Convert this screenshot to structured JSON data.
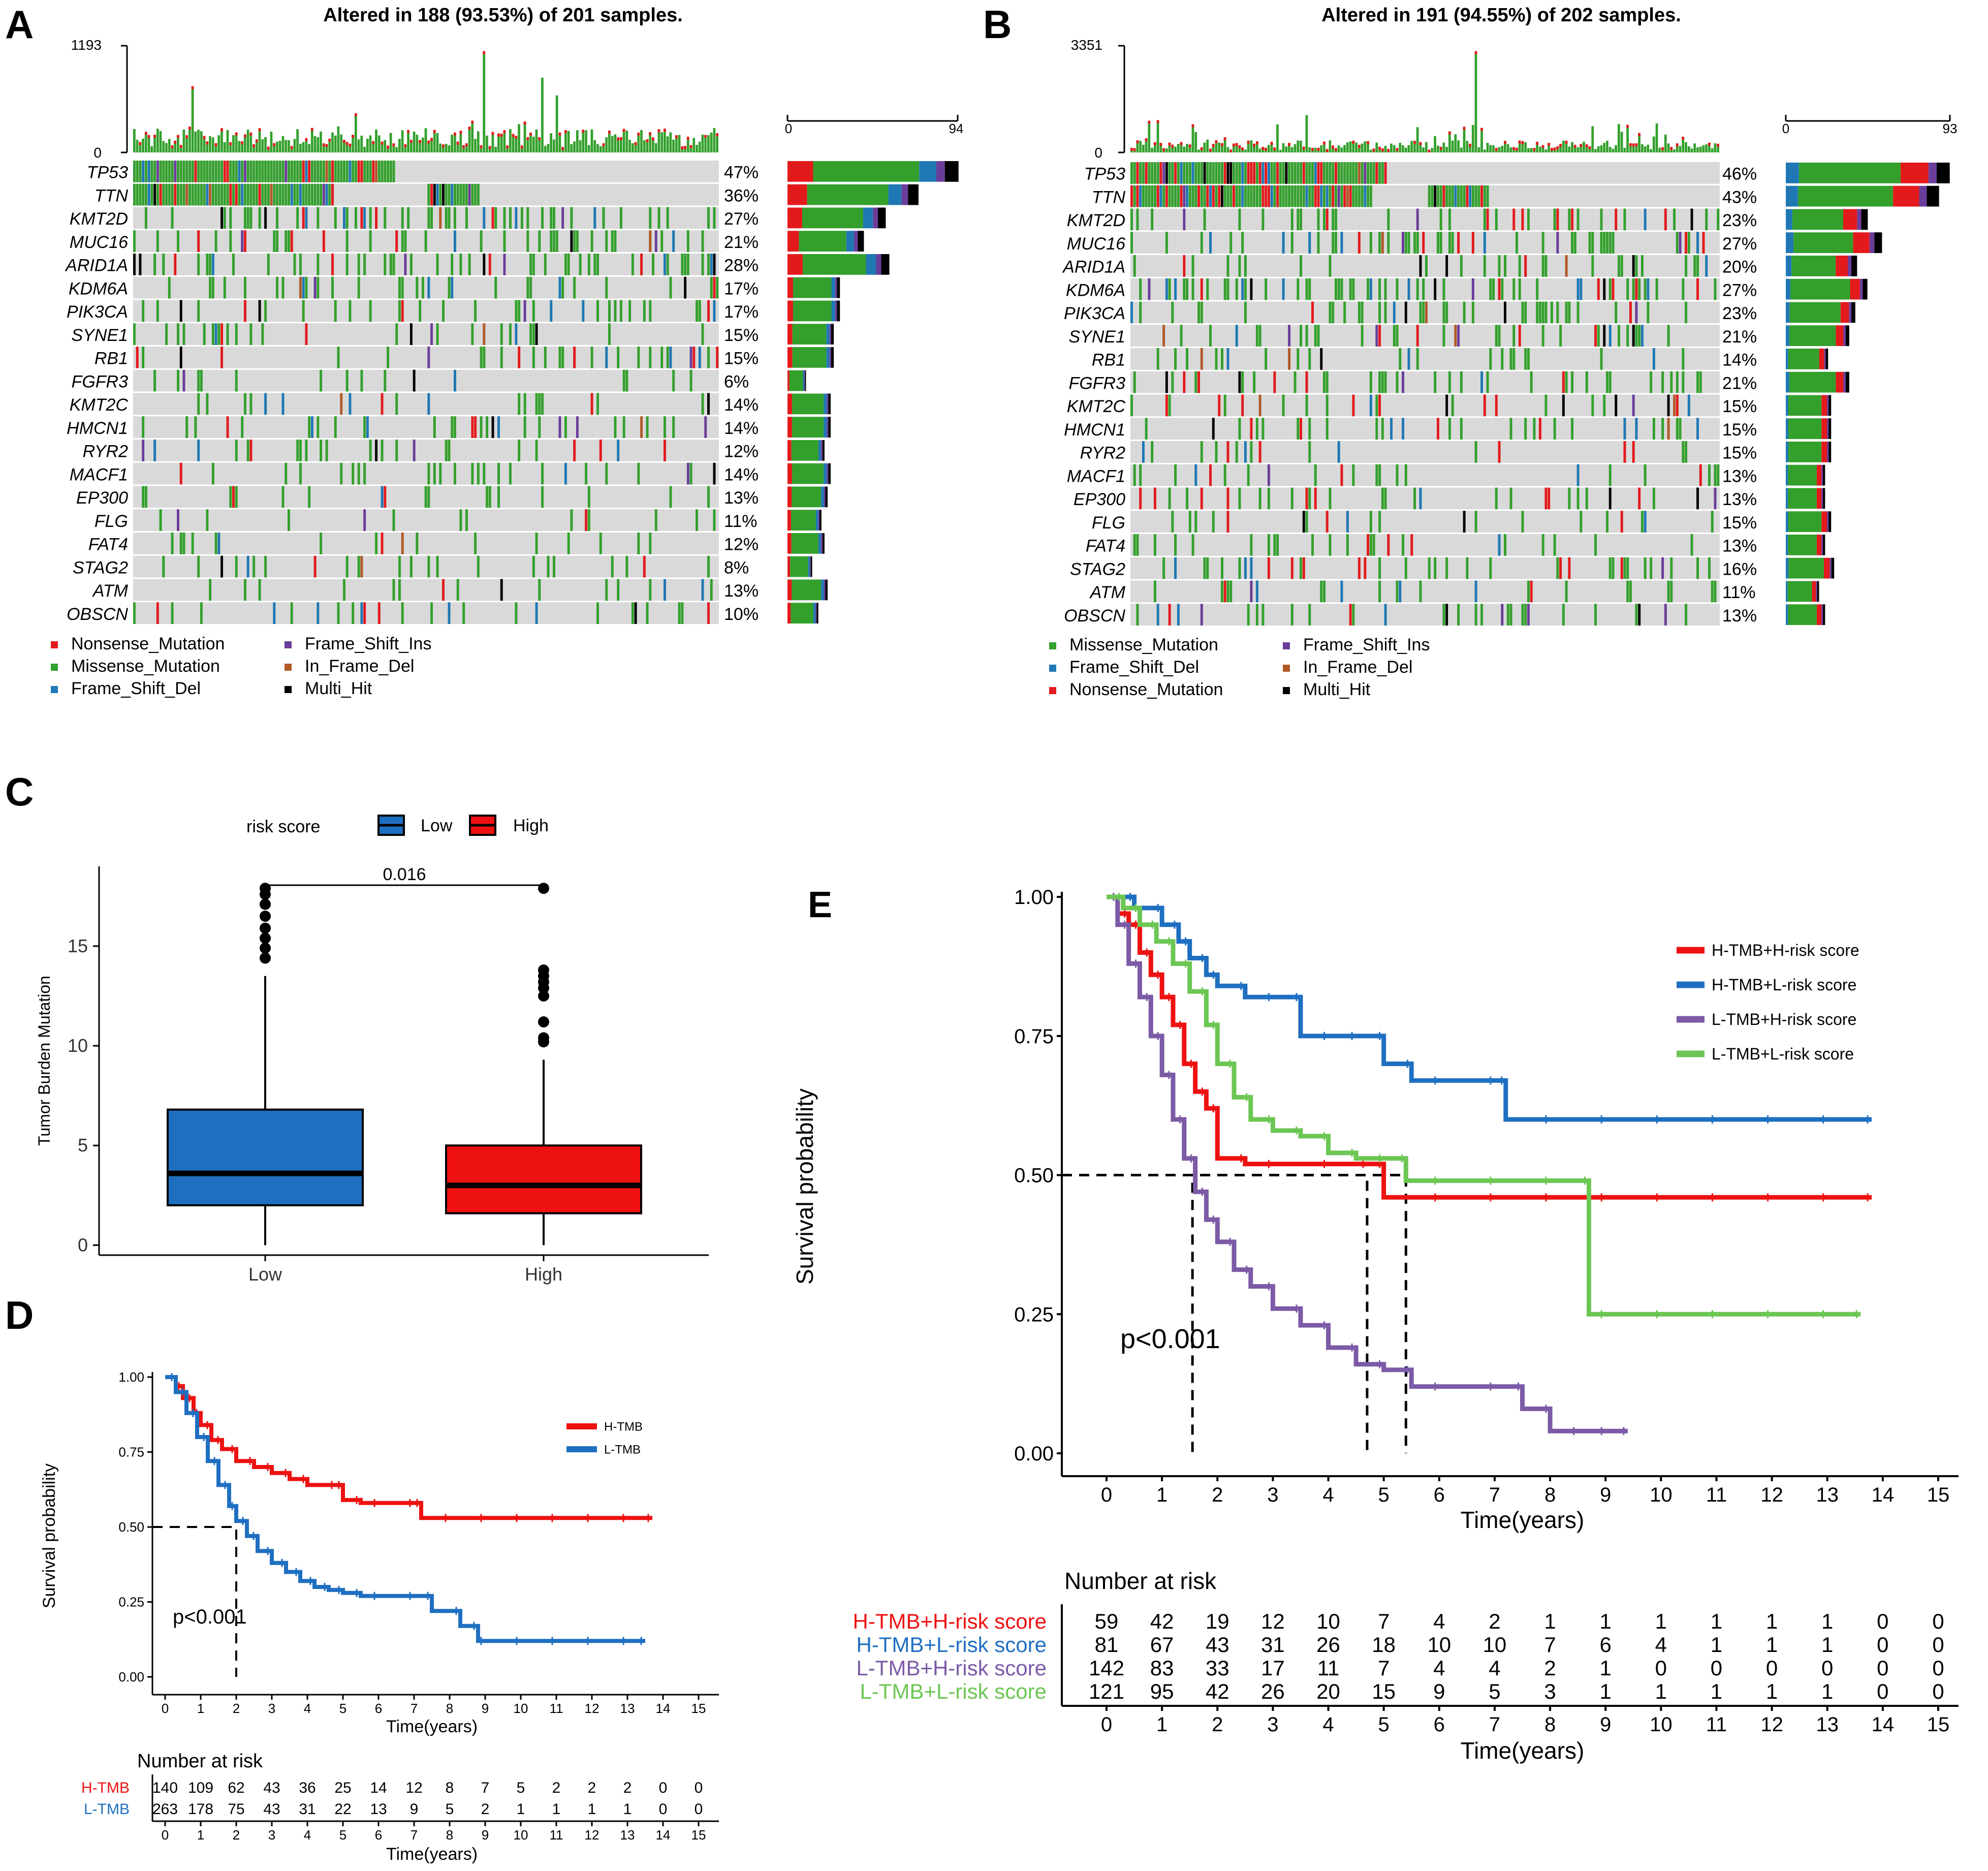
{
  "colors": {
    "missense": "#33a02c",
    "nonsense": "#e31a1c",
    "frameshift_del": "#1f78b4",
    "frameshift_ins": "#6a3d9a",
    "inframe_del": "#b15928",
    "multi_hit": "#000000",
    "bg_cell": "#d9d9d9",
    "low": "#1f6fc1",
    "high": "#ee1111",
    "purple": "#7b5aa6",
    "green_l": "#6cc653"
  },
  "panels": {
    "A": {
      "letter": "A",
      "title": "Altered in 188 (93.53%) of 201 samples.",
      "tmb_max": "1193",
      "tmb_zero": "0",
      "bar_zero": "0",
      "bar_max": "94"
    },
    "B": {
      "letter": "B",
      "title": "Altered in 191 (94.55%) of 202 samples.",
      "tmb_max": "3351",
      "tmb_zero": "0",
      "bar_zero": "0",
      "bar_max": "93"
    },
    "C": {
      "letter": "C"
    },
    "D": {
      "letter": "D"
    },
    "E": {
      "letter": "E"
    }
  },
  "chart_data": [
    {
      "id": "A",
      "type": "oncoplot",
      "title": "Altered in 188 (93.53%) of 201 samples.",
      "samples": 201,
      "tmb_axis_max": 1193,
      "bar_axis_max": 94,
      "genes": [
        "TP53",
        "TTN",
        "KMT2D",
        "MUC16",
        "ARID1A",
        "KDM6A",
        "PIK3CA",
        "SYNE1",
        "RB1",
        "FGFR3",
        "KMT2C",
        "HMCN1",
        "RYR2",
        "MACF1",
        "EP300",
        "FLG",
        "FAT4",
        "STAG2",
        "ATM",
        "OBSCN"
      ],
      "percent_labels": [
        "47%",
        "36%",
        "27%",
        "21%",
        "28%",
        "17%",
        "17%",
        "15%",
        "15%",
        "6%",
        "14%",
        "14%",
        "12%",
        "14%",
        "13%",
        "11%",
        "12%",
        "8%",
        "13%",
        "10%"
      ],
      "percent": [
        47,
        36,
        27,
        21,
        28,
        17,
        17,
        15,
        15,
        6,
        14,
        14,
        12,
        14,
        13,
        11,
        12,
        8,
        13,
        10
      ],
      "legend": [
        "Nonsense_Mutation",
        "Missense_Mutation",
        "Frame_Shift_Del",
        "Frame_Shift_Ins",
        "In_Frame_Del",
        "Multi_Hit"
      ]
    },
    {
      "id": "B",
      "type": "oncoplot",
      "title": "Altered in 191 (94.55%) of 202 samples.",
      "samples": 202,
      "tmb_axis_max": 3351,
      "bar_axis_max": 93,
      "genes": [
        "TP53",
        "TTN",
        "KMT2D",
        "MUC16",
        "ARID1A",
        "KDM6A",
        "PIK3CA",
        "SYNE1",
        "RB1",
        "FGFR3",
        "KMT2C",
        "HMCN1",
        "RYR2",
        "MACF1",
        "EP300",
        "FLG",
        "FAT4",
        "STAG2",
        "ATM",
        "OBSCN"
      ],
      "percent_labels": [
        "46%",
        "43%",
        "23%",
        "27%",
        "20%",
        "27%",
        "23%",
        "21%",
        "14%",
        "21%",
        "15%",
        "15%",
        "15%",
        "13%",
        "13%",
        "15%",
        "13%",
        "16%",
        "11%",
        "13%"
      ],
      "percent": [
        46,
        43,
        23,
        27,
        20,
        27,
        23,
        21,
        14,
        21,
        15,
        15,
        15,
        13,
        13,
        15,
        13,
        16,
        11,
        13
      ],
      "legend": [
        "Missense_Mutation",
        "Frame_Shift_Del",
        "Nonsense_Mutation",
        "Frame_Shift_Ins",
        "In_Frame_Del",
        "Multi_Hit"
      ]
    },
    {
      "id": "C",
      "type": "boxplot",
      "legend_title": "risk score",
      "legend": [
        "Low",
        "High"
      ],
      "ylabel": "Tumor Burden Mutation",
      "categories": [
        "Low",
        "High"
      ],
      "ylim": [
        -0.5,
        19
      ],
      "yticks": [
        0,
        5,
        10,
        15
      ],
      "boxes": [
        {
          "name": "Low",
          "q1": 2.0,
          "median": 3.6,
          "q3": 6.8,
          "whisker_low": 0,
          "whisker_high": 13.5,
          "outliers": [
            14.4,
            14.9,
            15.4,
            15.9,
            16.5,
            17.1,
            17.6,
            17.9
          ]
        },
        {
          "name": "High",
          "q1": 1.6,
          "median": 3.0,
          "q3": 5.0,
          "whisker_low": 0,
          "whisker_high": 9.3,
          "outliers": [
            10.2,
            10.4,
            11.2,
            12.5,
            12.9,
            13.2,
            13.5,
            13.8,
            17.9
          ]
        }
      ],
      "pvalue": "0.016"
    },
    {
      "id": "D",
      "type": "line",
      "ylabel": "Survival probability",
      "xlabel": "Time(years)",
      "xlim": [
        0,
        15
      ],
      "ylim": [
        0,
        1
      ],
      "yticks": [
        "0.00",
        "0.25",
        "0.50",
        "0.75",
        "1.00"
      ],
      "xticks": [
        "0",
        "1",
        "2",
        "3",
        "4",
        "5",
        "6",
        "7",
        "8",
        "9",
        "10",
        "11",
        "12",
        "13",
        "14",
        "15"
      ],
      "pvalue_text": "p<0.001",
      "series": [
        {
          "name": "H-TMB",
          "x": [
            0,
            0.3,
            0.5,
            0.8,
            1,
            1.3,
            1.6,
            2,
            2.5,
            3,
            3.5,
            4,
            4.8,
            5,
            5.5,
            6,
            7,
            7.2,
            8,
            9,
            10,
            11,
            12,
            13,
            13.7
          ],
          "y": [
            1,
            0.97,
            0.93,
            0.88,
            0.84,
            0.79,
            0.76,
            0.72,
            0.7,
            0.68,
            0.66,
            0.64,
            0.64,
            0.59,
            0.58,
            0.58,
            0.58,
            0.53,
            0.53,
            0.53,
            0.53,
            0.53,
            0.53,
            0.53,
            0.53
          ]
        },
        {
          "name": "L-TMB",
          "x": [
            0,
            0.3,
            0.6,
            0.9,
            1.2,
            1.5,
            1.8,
            2,
            2.3,
            2.6,
            3,
            3.4,
            3.8,
            4.2,
            4.6,
            5,
            5.5,
            6,
            7,
            7.5,
            8.3,
            8.8,
            9,
            10,
            11,
            12,
            13,
            13.5
          ],
          "y": [
            1,
            0.95,
            0.88,
            0.8,
            0.72,
            0.64,
            0.57,
            0.52,
            0.47,
            0.42,
            0.38,
            0.35,
            0.32,
            0.3,
            0.29,
            0.28,
            0.27,
            0.27,
            0.27,
            0.22,
            0.17,
            0.12,
            0.12,
            0.12,
            0.12,
            0.12,
            0.12,
            0.12
          ]
        }
      ],
      "risk_table_title": "Number at risk",
      "risk_table": [
        {
          "name": "H-TMB",
          "values": [
            140,
            109,
            62,
            43,
            36,
            25,
            14,
            12,
            8,
            7,
            5,
            2,
            2,
            2,
            0,
            0
          ]
        },
        {
          "name": "L-TMB",
          "values": [
            263,
            178,
            75,
            43,
            31,
            22,
            13,
            9,
            5,
            2,
            1,
            1,
            1,
            1,
            0,
            0
          ]
        }
      ]
    },
    {
      "id": "E",
      "type": "line",
      "ylabel": "Survival probability",
      "xlabel": "Time(years)",
      "xlim": [
        0,
        15
      ],
      "ylim": [
        0,
        1
      ],
      "yticks": [
        "0.00",
        "0.25",
        "0.50",
        "0.75",
        "1.00"
      ],
      "xticks": [
        "0",
        "1",
        "2",
        "3",
        "4",
        "5",
        "6",
        "7",
        "8",
        "9",
        "10",
        "11",
        "12",
        "13",
        "14",
        "15"
      ],
      "pvalue_text": "p<0.001",
      "series": [
        {
          "name": "H-TMB+H-risk score",
          "x": [
            0,
            0.2,
            0.4,
            0.6,
            0.8,
            1,
            1.2,
            1.4,
            1.6,
            1.8,
            2,
            2.5,
            3,
            4,
            4.7,
            5,
            6,
            7,
            8,
            9,
            10,
            11,
            12,
            13,
            13.8
          ],
          "y": [
            1,
            0.97,
            0.95,
            0.9,
            0.86,
            0.82,
            0.77,
            0.7,
            0.65,
            0.62,
            0.53,
            0.52,
            0.52,
            0.52,
            0.52,
            0.46,
            0.46,
            0.46,
            0.46,
            0.46,
            0.46,
            0.46,
            0.46,
            0.46,
            0.46
          ]
        },
        {
          "name": "H-TMB+L-risk score",
          "x": [
            0,
            0.5,
            1,
            1.3,
            1.5,
            1.8,
            2,
            2.5,
            3,
            3.5,
            4,
            4.5,
            5,
            5.5,
            6,
            7,
            7.2,
            8,
            9,
            10,
            11,
            12,
            13,
            13.8
          ],
          "y": [
            1,
            0.98,
            0.95,
            0.92,
            0.89,
            0.86,
            0.84,
            0.82,
            0.82,
            0.75,
            0.75,
            0.75,
            0.7,
            0.67,
            0.67,
            0.67,
            0.6,
            0.6,
            0.6,
            0.6,
            0.6,
            0.6,
            0.6,
            0.6
          ]
        },
        {
          "name": "L-TMB+H-risk score",
          "x": [
            0,
            0.2,
            0.4,
            0.6,
            0.8,
            1,
            1.2,
            1.4,
            1.6,
            1.8,
            2,
            2.3,
            2.6,
            3,
            3.5,
            4,
            4.5,
            5,
            5.5,
            6,
            7,
            7.5,
            8,
            8.5,
            9,
            9.4
          ],
          "y": [
            1,
            0.95,
            0.88,
            0.82,
            0.75,
            0.68,
            0.6,
            0.53,
            0.47,
            0.42,
            0.38,
            0.33,
            0.3,
            0.26,
            0.23,
            0.19,
            0.16,
            0.15,
            0.12,
            0.12,
            0.12,
            0.08,
            0.04,
            0.04,
            0.04,
            0.04
          ]
        },
        {
          "name": "L-TMB+L-risk score",
          "x": [
            0,
            0.3,
            0.6,
            0.9,
            1.2,
            1.5,
            1.8,
            2,
            2.3,
            2.6,
            3,
            3.5,
            4,
            4.5,
            5,
            5.4,
            6,
            7,
            8,
            8.7,
            9,
            10,
            11,
            12,
            13,
            13.6
          ],
          "y": [
            1,
            0.98,
            0.95,
            0.92,
            0.88,
            0.83,
            0.77,
            0.7,
            0.64,
            0.6,
            0.58,
            0.57,
            0.54,
            0.53,
            0.53,
            0.49,
            0.49,
            0.49,
            0.49,
            0.25,
            0.25,
            0.25,
            0.25,
            0.25,
            0.25,
            0.25
          ]
        }
      ],
      "risk_table_title": "Number at risk",
      "risk_table": [
        {
          "name": "H-TMB+H-risk score",
          "values": [
            59,
            42,
            19,
            12,
            10,
            7,
            4,
            2,
            1,
            1,
            1,
            1,
            1,
            1,
            0,
            0
          ]
        },
        {
          "name": "H-TMB+L-risk score",
          "values": [
            81,
            67,
            43,
            31,
            26,
            18,
            10,
            10,
            7,
            6,
            4,
            1,
            1,
            1,
            0,
            0
          ]
        },
        {
          "name": "L-TMB+H-risk score",
          "values": [
            142,
            83,
            33,
            17,
            11,
            7,
            4,
            4,
            2,
            1,
            0,
            0,
            0,
            0,
            0,
            0
          ]
        },
        {
          "name": "L-TMB+L-risk score",
          "values": [
            121,
            95,
            42,
            26,
            20,
            15,
            9,
            5,
            3,
            1,
            1,
            1,
            1,
            1,
            0,
            0
          ]
        }
      ]
    }
  ]
}
